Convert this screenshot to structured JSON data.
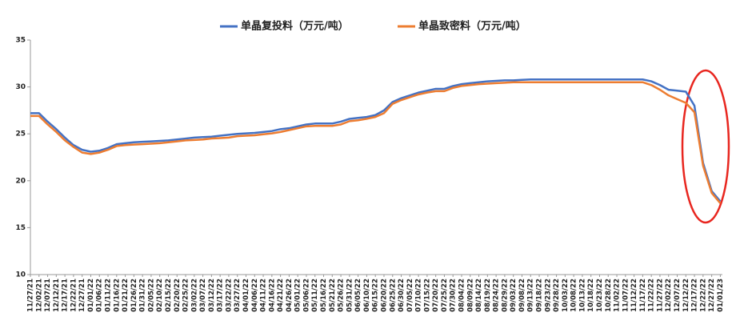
{
  "chart_data": {
    "type": "line",
    "categories": [
      "11/27/21",
      "12/02/21",
      "12/07/21",
      "12/12/21",
      "12/17/21",
      "12/22/21",
      "12/27/21",
      "01/01/22",
      "01/06/22",
      "01/11/22",
      "01/16/22",
      "01/21/22",
      "01/26/22",
      "01/31/22",
      "02/05/22",
      "02/10/22",
      "02/15/22",
      "02/20/22",
      "02/25/22",
      "03/02/22",
      "03/07/22",
      "03/12/22",
      "03/17/22",
      "03/22/22",
      "03/27/22",
      "04/01/22",
      "04/06/22",
      "04/11/22",
      "04/16/22",
      "04/21/22",
      "04/26/22",
      "05/01/22",
      "05/06/22",
      "05/11/22",
      "05/16/22",
      "05/21/22",
      "05/26/22",
      "05/31/22",
      "06/05/22",
      "06/10/22",
      "06/15/22",
      "06/20/22",
      "06/25/22",
      "06/30/22",
      "07/05/22",
      "07/10/22",
      "07/15/22",
      "07/20/22",
      "07/25/22",
      "07/30/22",
      "08/04/22",
      "08/09/22",
      "08/14/22",
      "08/19/22",
      "08/24/22",
      "08/29/22",
      "09/03/22",
      "09/08/22",
      "09/13/22",
      "09/18/22",
      "09/23/22",
      "09/28/22",
      "10/03/22",
      "10/08/22",
      "10/13/22",
      "10/18/22",
      "10/23/22",
      "10/28/22",
      "11/02/22",
      "11/07/22",
      "11/12/22",
      "11/17/22",
      "11/22/22",
      "11/27/22",
      "12/02/22",
      "12/07/22",
      "12/12/22",
      "12/17/22",
      "12/22/22",
      "12/27/22",
      "01/01/23"
    ],
    "series": [
      {
        "name": "单晶复投料（万元/吨）",
        "color": "#4472c4",
        "values": [
          27.2,
          27.2,
          26.3,
          25.5,
          24.6,
          23.8,
          23.3,
          23.1,
          23.2,
          23.5,
          23.9,
          24.0,
          24.1,
          24.15,
          24.2,
          24.25,
          24.3,
          24.4,
          24.5,
          24.6,
          24.65,
          24.7,
          24.8,
          24.9,
          25.0,
          25.05,
          25.1,
          25.2,
          25.3,
          25.5,
          25.6,
          25.8,
          26.0,
          26.1,
          26.1,
          26.1,
          26.3,
          26.6,
          26.7,
          26.8,
          27.0,
          27.5,
          28.4,
          28.8,
          29.1,
          29.4,
          29.6,
          29.8,
          29.8,
          30.1,
          30.3,
          30.4,
          30.5,
          30.6,
          30.65,
          30.7,
          30.7,
          30.75,
          30.8,
          30.8,
          30.8,
          30.8,
          30.8,
          30.8,
          30.8,
          30.8,
          30.8,
          30.8,
          30.8,
          30.8,
          30.8,
          30.8,
          30.6,
          30.2,
          29.7,
          29.6,
          29.5,
          28.0,
          21.9,
          18.9,
          17.8
        ]
      },
      {
        "name": "单晶致密料（万元/吨）",
        "color": "#ed7d31",
        "values": [
          26.9,
          26.9,
          26.0,
          25.2,
          24.3,
          23.6,
          23.0,
          22.85,
          23.0,
          23.3,
          23.7,
          23.8,
          23.85,
          23.9,
          23.95,
          24.0,
          24.1,
          24.2,
          24.3,
          24.35,
          24.4,
          24.5,
          24.55,
          24.6,
          24.75,
          24.8,
          24.85,
          24.95,
          25.05,
          25.2,
          25.4,
          25.6,
          25.8,
          25.85,
          25.85,
          25.85,
          26.0,
          26.35,
          26.45,
          26.6,
          26.8,
          27.2,
          28.2,
          28.6,
          28.9,
          29.2,
          29.4,
          29.55,
          29.55,
          29.9,
          30.1,
          30.2,
          30.3,
          30.35,
          30.4,
          30.45,
          30.5,
          30.5,
          30.5,
          30.5,
          30.5,
          30.5,
          30.5,
          30.5,
          30.5,
          30.5,
          30.5,
          30.5,
          30.5,
          30.5,
          30.5,
          30.5,
          30.2,
          29.7,
          29.1,
          28.7,
          28.3,
          27.3,
          21.6,
          18.7,
          17.6
        ]
      }
    ],
    "ylim": [
      10,
      35
    ],
    "yticks": [
      10,
      15,
      20,
      25,
      30,
      35
    ],
    "grid": false
  }
}
